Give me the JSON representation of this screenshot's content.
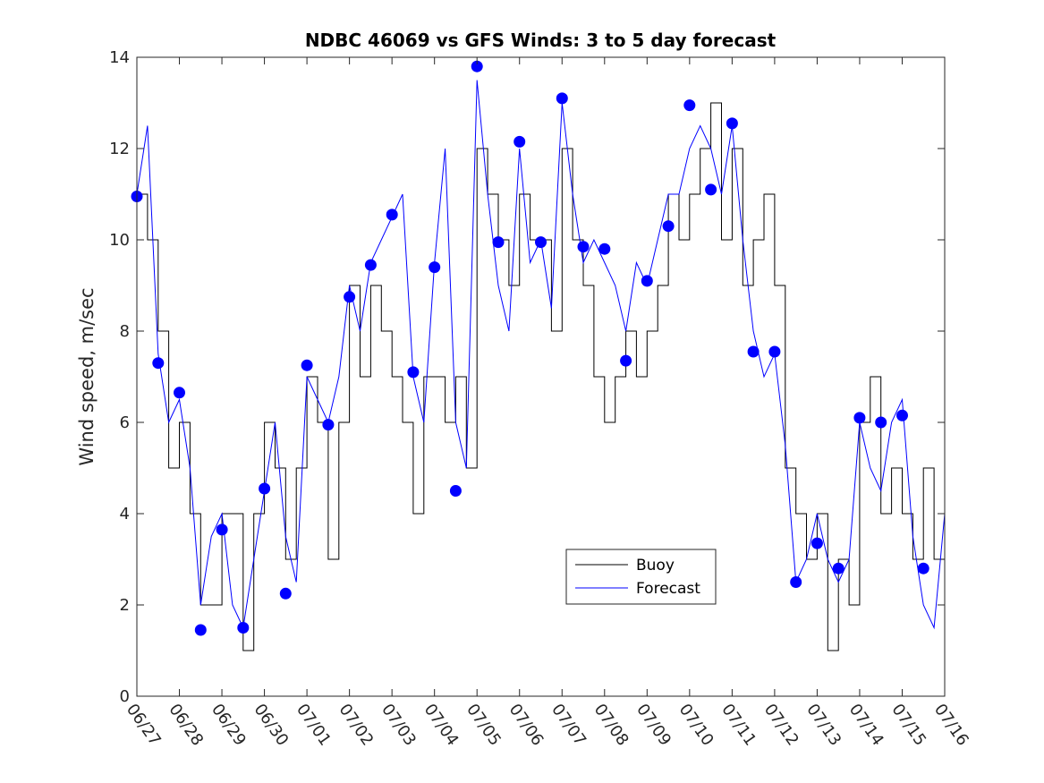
{
  "chart_data": {
    "type": "line",
    "title": "NDBC 46069 vs GFS Winds: 3 to 5 day forecast",
    "xlabel": "",
    "ylabel": "Wind speed, m/sec",
    "xlim": [
      "06/27",
      "07/16"
    ],
    "ylim": [
      0,
      14
    ],
    "y_ticks": [
      0,
      2,
      4,
      6,
      8,
      10,
      12,
      14
    ],
    "x_ticks": [
      "06/27",
      "06/28",
      "06/29",
      "06/30",
      "07/01",
      "07/02",
      "07/03",
      "07/04",
      "07/05",
      "07/06",
      "07/07",
      "07/08",
      "07/09",
      "07/10",
      "07/11",
      "07/12",
      "07/13",
      "07/14",
      "07/15",
      "07/16"
    ],
    "grid": false,
    "legend": {
      "position": "lower-center-right",
      "entries": [
        "Buoy",
        "Forecast"
      ]
    },
    "colors": {
      "buoy": "#000000",
      "forecast": "#0000ff"
    },
    "series": [
      {
        "name": "Buoy",
        "style": "black stepped line",
        "x": [
          "06/27 00:00",
          "06/27 06:00",
          "06/27 12:00",
          "06/27 18:00",
          "06/28 00:00",
          "06/28 06:00",
          "06/28 12:00",
          "06/28 18:00",
          "06/29 00:00",
          "06/29 06:00",
          "06/29 12:00",
          "06/29 18:00",
          "06/30 00:00",
          "06/30 06:00",
          "06/30 12:00",
          "06/30 18:00",
          "07/01 00:00",
          "07/01 06:00",
          "07/01 12:00",
          "07/01 18:00",
          "07/02 00:00",
          "07/02 06:00",
          "07/02 12:00",
          "07/02 18:00",
          "07/03 00:00",
          "07/03 06:00",
          "07/03 12:00",
          "07/03 18:00",
          "07/04 00:00",
          "07/04 06:00",
          "07/04 12:00",
          "07/04 18:00",
          "07/05 00:00",
          "07/05 06:00",
          "07/05 12:00",
          "07/05 18:00",
          "07/06 00:00",
          "07/06 06:00",
          "07/06 12:00",
          "07/06 18:00",
          "07/07 00:00",
          "07/07 06:00",
          "07/07 12:00",
          "07/07 18:00",
          "07/08 00:00",
          "07/08 06:00",
          "07/08 12:00",
          "07/08 18:00",
          "07/09 00:00",
          "07/09 06:00",
          "07/09 12:00",
          "07/09 18:00",
          "07/10 00:00",
          "07/10 06:00",
          "07/10 12:00",
          "07/10 18:00",
          "07/11 00:00",
          "07/11 06:00",
          "07/11 12:00",
          "07/11 18:00",
          "07/12 00:00",
          "07/12 06:00",
          "07/12 12:00",
          "07/12 18:00",
          "07/13 00:00",
          "07/13 06:00",
          "07/13 12:00",
          "07/13 18:00",
          "07/14 00:00",
          "07/14 06:00",
          "07/14 12:00",
          "07/14 18:00",
          "07/15 00:00",
          "07/15 06:00",
          "07/15 12:00",
          "07/15 18:00",
          "07/16 00:00"
        ],
        "values": [
          11,
          10,
          8,
          5,
          6,
          4,
          2,
          2,
          4,
          4,
          1,
          4,
          6,
          5,
          3,
          5,
          7,
          6,
          3,
          6,
          9,
          7,
          9,
          8,
          7,
          6,
          4,
          7,
          7,
          6,
          7,
          5,
          12,
          11,
          10,
          9,
          11,
          10,
          10,
          8,
          12,
          10,
          9,
          7,
          6,
          7,
          8,
          7,
          8,
          9,
          11,
          10,
          11,
          12,
          13,
          10,
          12,
          9,
          10,
          11,
          9,
          5,
          4,
          3,
          4,
          1,
          3,
          2,
          6,
          7,
          4,
          5,
          4,
          3,
          5,
          3,
          4
        ]
      },
      {
        "name": "Forecast",
        "style": "thin blue lines (overlapping forecast runs)",
        "x": [
          "06/27 00:00",
          "06/27 06:00",
          "06/27 12:00",
          "06/27 18:00",
          "06/28 00:00",
          "06/28 06:00",
          "06/28 12:00",
          "06/28 18:00",
          "06/29 00:00",
          "06/29 06:00",
          "06/29 12:00",
          "06/29 18:00",
          "06/30 00:00",
          "06/30 06:00",
          "06/30 12:00",
          "06/30 18:00",
          "07/01 00:00",
          "07/01 06:00",
          "07/01 12:00",
          "07/01 18:00",
          "07/02 00:00",
          "07/02 06:00",
          "07/02 12:00",
          "07/02 18:00",
          "07/03 00:00",
          "07/03 06:00",
          "07/03 12:00",
          "07/03 18:00",
          "07/04 00:00",
          "07/04 06:00",
          "07/04 12:00",
          "07/04 18:00",
          "07/05 00:00",
          "07/05 06:00",
          "07/05 12:00",
          "07/05 18:00",
          "07/06 00:00",
          "07/06 06:00",
          "07/06 12:00",
          "07/06 18:00",
          "07/07 00:00",
          "07/07 06:00",
          "07/07 12:00",
          "07/07 18:00",
          "07/08 00:00",
          "07/08 06:00",
          "07/08 12:00",
          "07/08 18:00",
          "07/09 00:00",
          "07/09 06:00",
          "07/09 12:00",
          "07/09 18:00",
          "07/10 00:00",
          "07/10 06:00",
          "07/10 12:00",
          "07/10 18:00",
          "07/11 00:00",
          "07/11 06:00",
          "07/11 12:00",
          "07/11 18:00",
          "07/12 00:00",
          "07/12 06:00",
          "07/12 12:00",
          "07/12 18:00",
          "07/13 00:00",
          "07/13 06:00",
          "07/13 12:00",
          "07/13 18:00",
          "07/14 00:00",
          "07/14 06:00",
          "07/14 12:00",
          "07/14 18:00",
          "07/15 00:00",
          "07/15 06:00",
          "07/15 12:00",
          "07/15 18:00",
          "07/16 00:00"
        ],
        "values": [
          11,
          12.5,
          7.5,
          6,
          6.5,
          5,
          2,
          3.5,
          4,
          2,
          1.5,
          3,
          4.5,
          6,
          3.5,
          2.5,
          7,
          6.5,
          6,
          7,
          9,
          8,
          9.5,
          10,
          10.5,
          11,
          7,
          6,
          9.5,
          12,
          6,
          5,
          13.5,
          11,
          9,
          8,
          12,
          9.5,
          10,
          8.5,
          13,
          11,
          9.5,
          10,
          9.5,
          9,
          8,
          9.5,
          9,
          10,
          11,
          11,
          12,
          12.5,
          12,
          11,
          12.5,
          10,
          8,
          7,
          7.5,
          5.5,
          2.5,
          3,
          4,
          3,
          2.5,
          3,
          6,
          5,
          4.5,
          6,
          6.5,
          3.5,
          2,
          1.5,
          4
        ]
      }
    ],
    "markers": {
      "name": "Forecast (3-5 day)",
      "style": "filled blue circles",
      "x": [
        "06/27 00:00",
        "06/27 12:00",
        "06/28 00:00",
        "06/28 12:00",
        "06/29 00:00",
        "06/29 12:00",
        "06/30 00:00",
        "06/30 12:00",
        "07/01 00:00",
        "07/01 12:00",
        "07/02 00:00",
        "07/02 12:00",
        "07/03 00:00",
        "07/03 12:00",
        "07/04 00:00",
        "07/04 12:00",
        "07/05 00:00",
        "07/05 12:00",
        "07/06 00:00",
        "07/06 12:00",
        "07/07 00:00",
        "07/07 12:00",
        "07/08 00:00",
        "07/08 12:00",
        "07/09 00:00",
        "07/09 12:00",
        "07/10 00:00",
        "07/10 12:00",
        "07/11 00:00",
        "07/11 12:00",
        "07/12 00:00",
        "07/12 12:00",
        "07/13 00:00",
        "07/13 12:00",
        "07/14 00:00",
        "07/14 12:00",
        "07/15 00:00",
        "07/15 12:00"
      ],
      "values": [
        10.95,
        7.3,
        6.65,
        1.45,
        3.65,
        1.5,
        4.55,
        2.25,
        7.25,
        5.95,
        8.75,
        9.45,
        10.55,
        7.1,
        9.4,
        4.5,
        13.8,
        9.95,
        12.15,
        9.95,
        13.1,
        9.85,
        9.8,
        7.35,
        9.1,
        10.3,
        12.95,
        11.1,
        12.55,
        7.55,
        7.55,
        2.5,
        3.35,
        2.8,
        6.1,
        6.0,
        6.15,
        2.8
      ]
    }
  }
}
